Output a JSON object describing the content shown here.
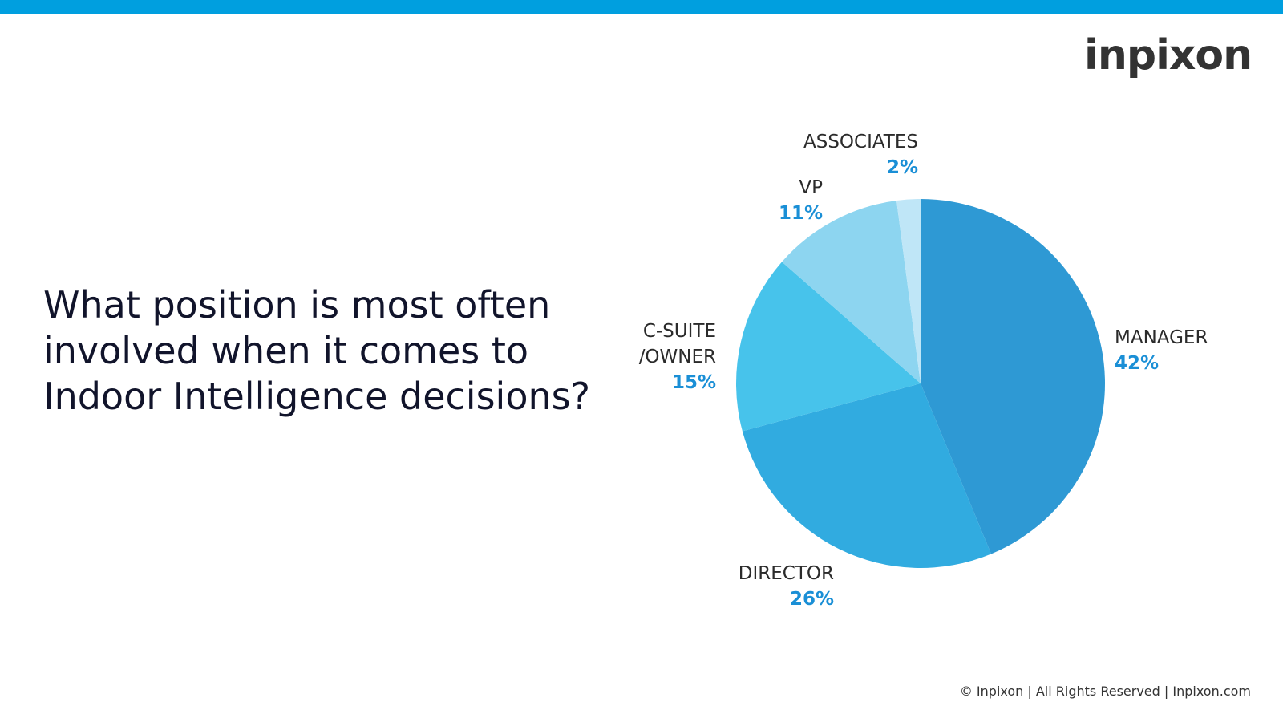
{
  "brand": {
    "name": "inpixon",
    "accent": "#009fdf"
  },
  "question": "What position is most often\ninvolved when it comes to\nIndoor Intelligence decisions?",
  "chart_data": {
    "type": "pie",
    "start": "12 o'clock",
    "direction": "clockwise",
    "slices": [
      {
        "label": "MANAGER",
        "value": 42,
        "value_label": "42%",
        "color": "#2e99d4"
      },
      {
        "label": "DIRECTOR",
        "value": 26,
        "value_label": "26%",
        "color": "#31abe0"
      },
      {
        "label": "C-SUITE\n/OWNER",
        "value": 15,
        "value_label": "15%",
        "color": "#47c3eb"
      },
      {
        "label": "VP",
        "value": 11,
        "value_label": "11%",
        "color": "#8dd5f0"
      },
      {
        "label": "ASSOCIATES",
        "value": 2,
        "value_label": "2%",
        "color": "#bfe6f7"
      }
    ],
    "label_color": "#2b2b2b",
    "value_color": "#1a8fd6"
  },
  "footer": "© Inpixon | All Rights Reserved | Inpixon.com"
}
